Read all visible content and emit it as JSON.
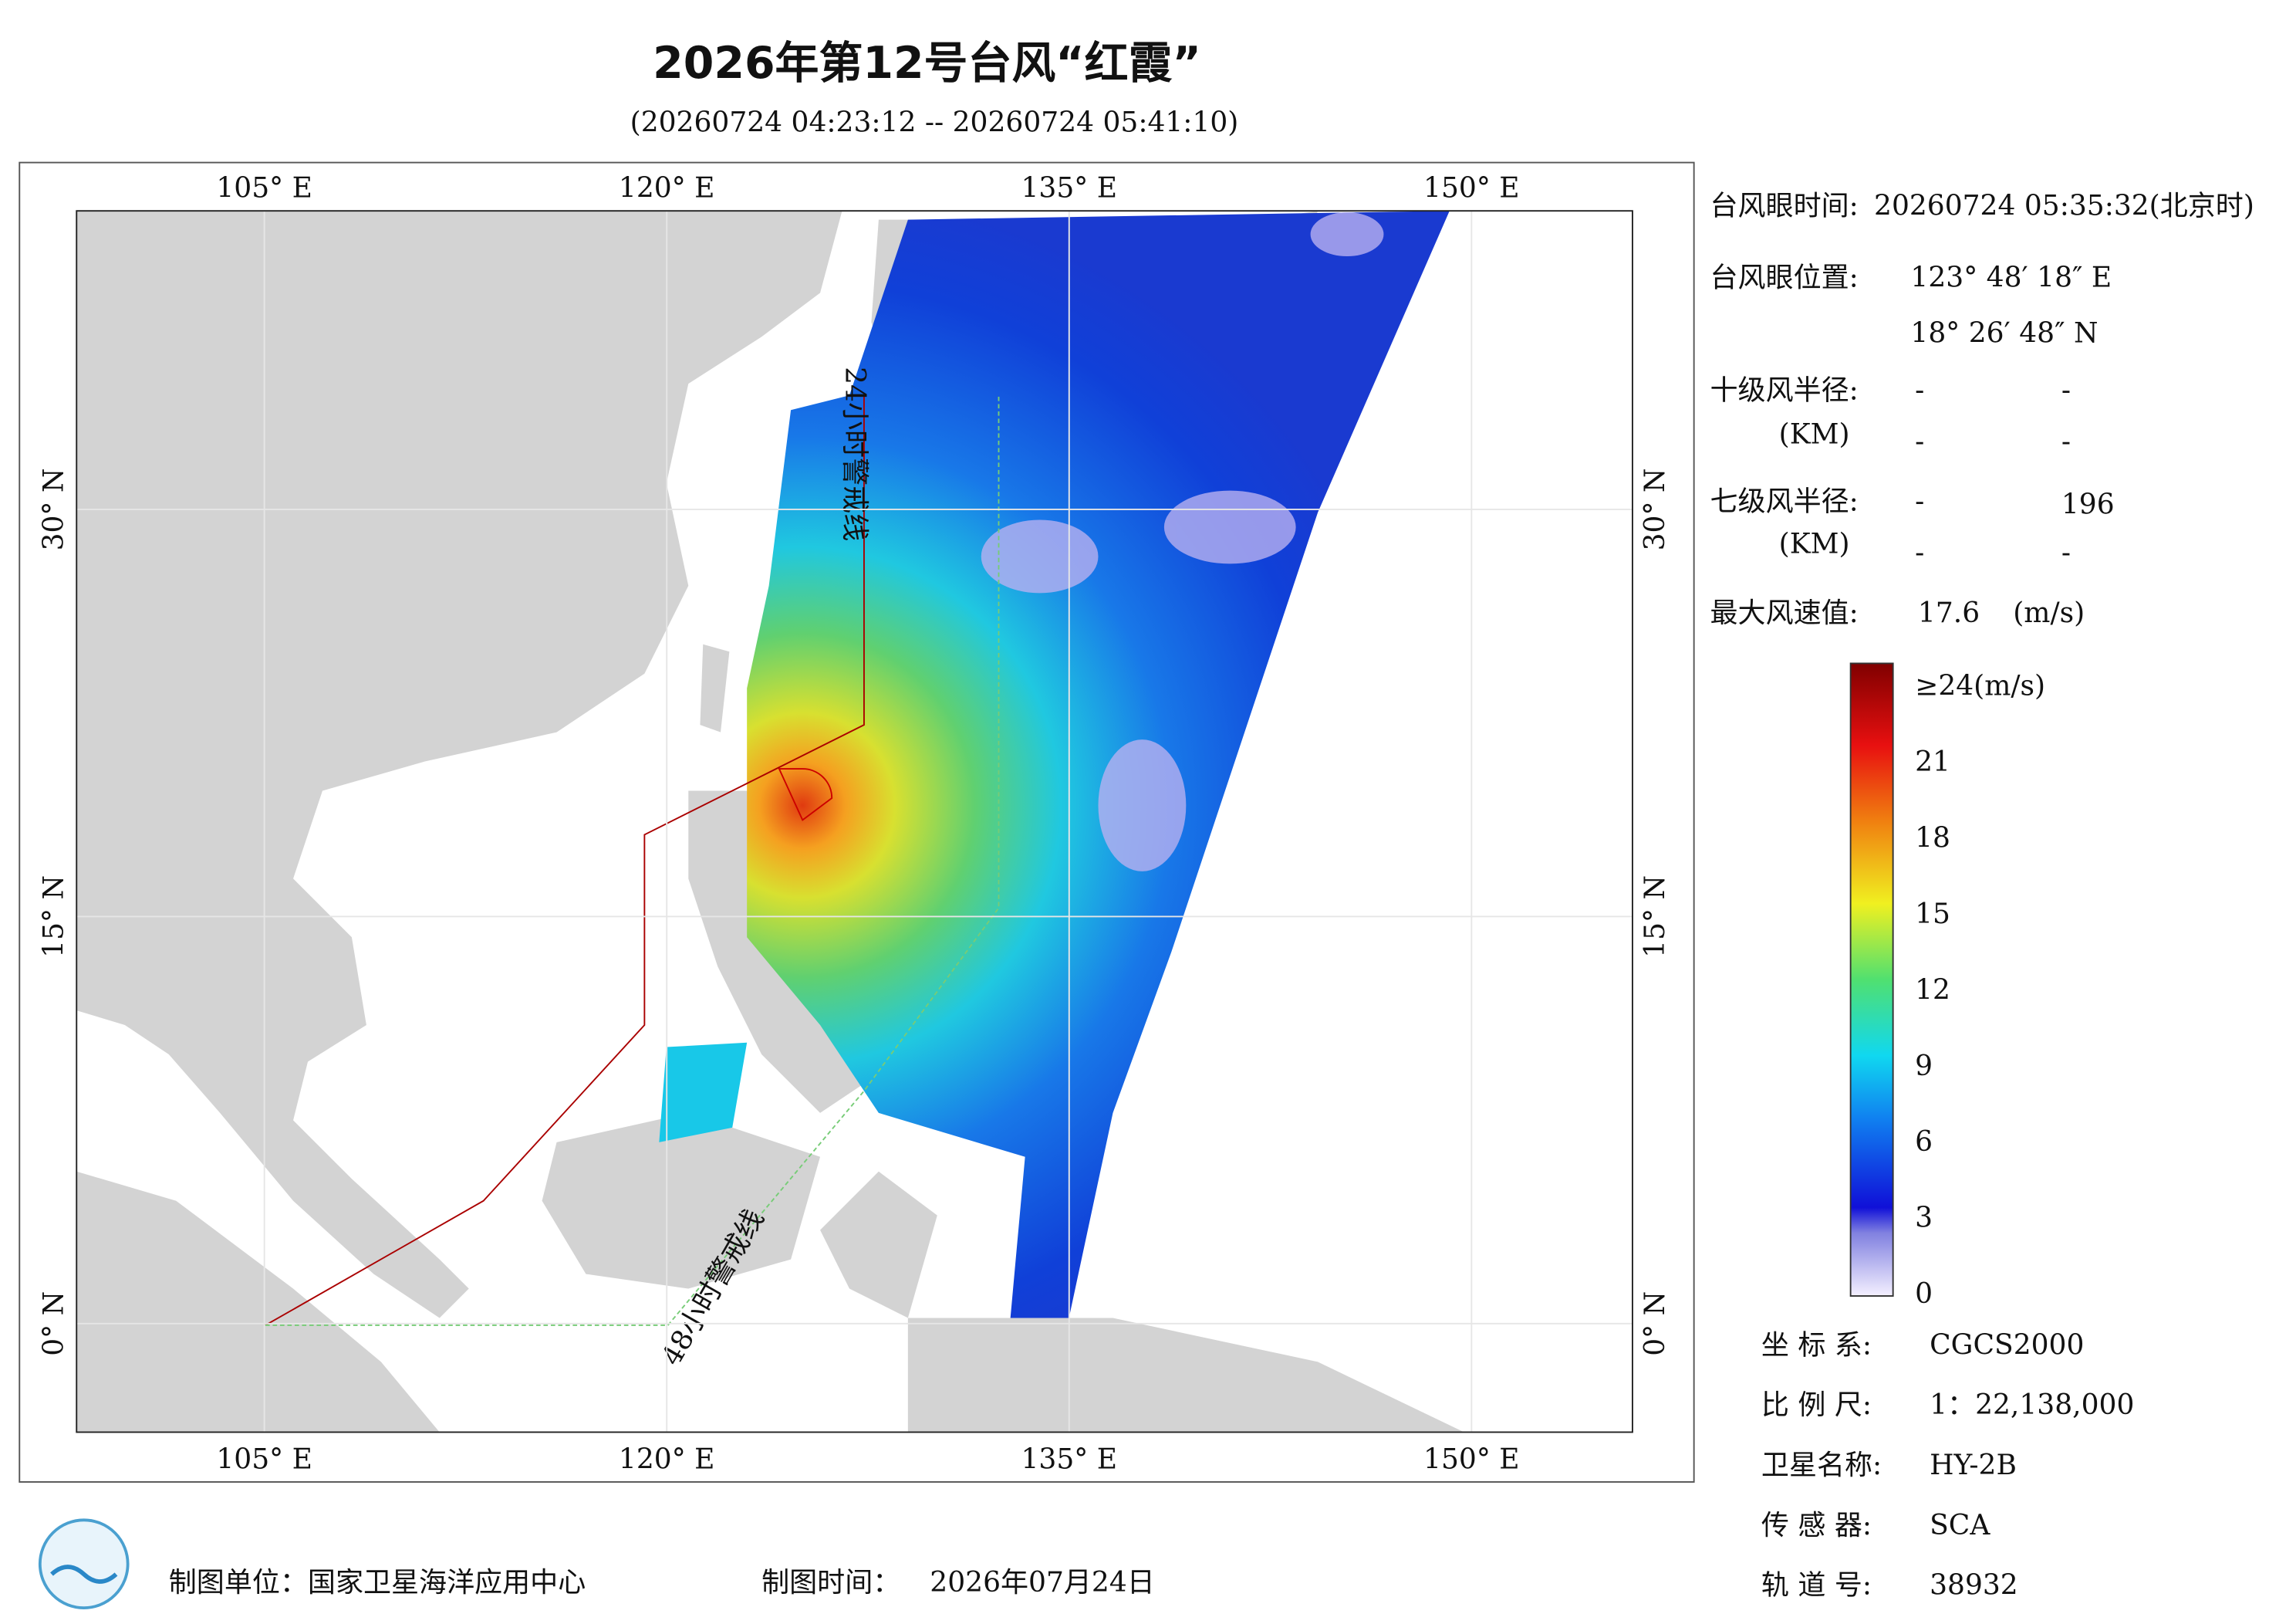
{
  "header": {
    "title": "2026年第12号台风“红霞”",
    "subtitle": "(20260724 04:23:12 -- 20260724 05:41:10)"
  },
  "map": {
    "xlim": [
      98,
      156
    ],
    "ylim": [
      -4,
      41
    ],
    "xticks": [
      {
        "value": 105,
        "label": "105° E"
      },
      {
        "value": 120,
        "label": "120° E"
      },
      {
        "value": 135,
        "label": "135° E"
      },
      {
        "value": 150,
        "label": "150° E"
      }
    ],
    "yticks": [
      {
        "value": 0,
        "label": "0° N"
      },
      {
        "value": 15,
        "label": "15° N"
      },
      {
        "value": 30,
        "label": "30° N"
      }
    ],
    "warning_24h": "24小时警戒线",
    "warning_48h": "48小时警戒线"
  },
  "info": {
    "eye_time_label": "台风眼时间:",
    "eye_time": "20260724 05:35:32(北京时)",
    "eye_position_label": "台风眼位置:",
    "eye_lon": "123° 48′ 18″ E",
    "eye_lat": "18° 26′ 48″ N",
    "r10_label": "十级风半径:",
    "r10_unit": "(KM)",
    "r10_values": [
      "-",
      "-",
      "-",
      "-"
    ],
    "r7_label": "七级风半径:",
    "r7_unit": "(KM)",
    "r7_values": [
      "-",
      196,
      "-",
      "-"
    ],
    "max_wind_label": "最大风速值:",
    "max_wind": 17.6,
    "max_wind_unit": "(m/s)"
  },
  "colorbar": {
    "range": [
      0,
      24
    ],
    "ticks": [
      0,
      3,
      6,
      9,
      12,
      15,
      18,
      21,
      {
        "value": 24,
        "label": "≥24(m/s)"
      }
    ]
  },
  "meta": [
    {
      "label": "坐 标 系:",
      "value": "CGCS2000"
    },
    {
      "label": "比 例 尺:",
      "value": "1：22,138,000"
    },
    {
      "label": "卫星名称:",
      "value": "HY-2B"
    },
    {
      "label": "传 感 器:",
      "value": "SCA"
    },
    {
      "label": "轨 道 号:",
      "value": 38932
    }
  ],
  "footer": {
    "unit": "制图单位：国家卫星海洋应用中心",
    "time_label": "制图时间：",
    "time": "2026年07月24日"
  }
}
